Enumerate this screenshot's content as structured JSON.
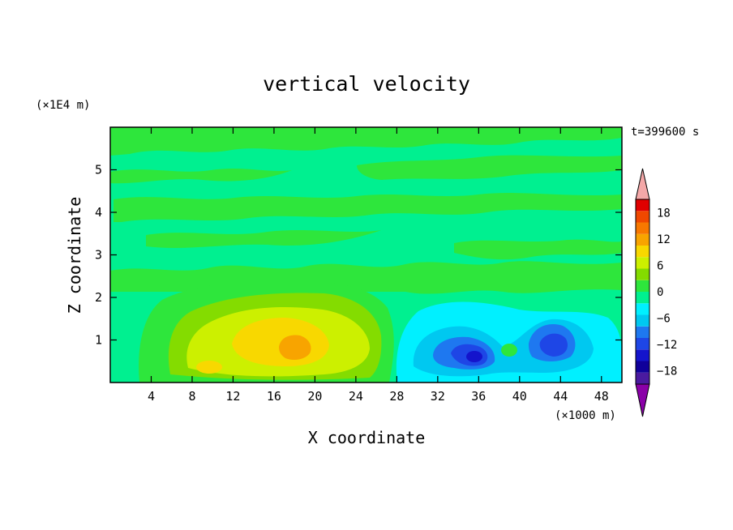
{
  "chart_data": {
    "type": "heatmap",
    "title": "vertical velocity",
    "xlabel": "X coordinate",
    "ylabel": "Z coordinate",
    "x_units": "(×1000 m)",
    "y_units": "(×1E4 m)",
    "time_label": "t=399600 s",
    "xlim": [
      0,
      50
    ],
    "ylim": [
      0,
      6
    ],
    "x_ticks": [
      4,
      8,
      12,
      16,
      20,
      24,
      28,
      32,
      36,
      40,
      44,
      48
    ],
    "y_ticks": [
      1,
      2,
      3,
      4,
      5
    ],
    "colorbar": {
      "levels": [
        -21,
        -18,
        -15,
        -12,
        -9,
        -6,
        -3,
        0,
        3,
        6,
        9,
        12,
        15,
        18,
        21
      ],
      "tick_labels": [
        "18",
        "12",
        "6",
        "0",
        "−6",
        "−12",
        "−18"
      ],
      "tick_values": [
        18,
        12,
        6,
        0,
        -6,
        -12,
        -18
      ],
      "colors": [
        "#8a00a8",
        "#4a1aa0",
        "#10009a",
        "#1414cc",
        "#1e46e6",
        "#1e78f0",
        "#00c8f0",
        "#00f0ff",
        "#00f090",
        "#2ee63c",
        "#84dc00",
        "#ccf000",
        "#f8d800",
        "#f8a400",
        "#f87800",
        "#f04800",
        "#e00000",
        "#f4a8a8"
      ],
      "extend": "both"
    },
    "features": [
      {
        "name": "updraft",
        "x": 18,
        "z": 0.9,
        "peak": 11
      },
      {
        "name": "updraft",
        "x": 10,
        "z": 0.35,
        "peak": 6
      },
      {
        "name": "downdraft",
        "x": 35.5,
        "z": 0.7,
        "peak": -12
      },
      {
        "name": "downdraft",
        "x": 43,
        "z": 0.9,
        "peak": -13
      },
      {
        "name": "updraft",
        "x": 39,
        "z": 0.8,
        "peak": 1
      }
    ]
  }
}
